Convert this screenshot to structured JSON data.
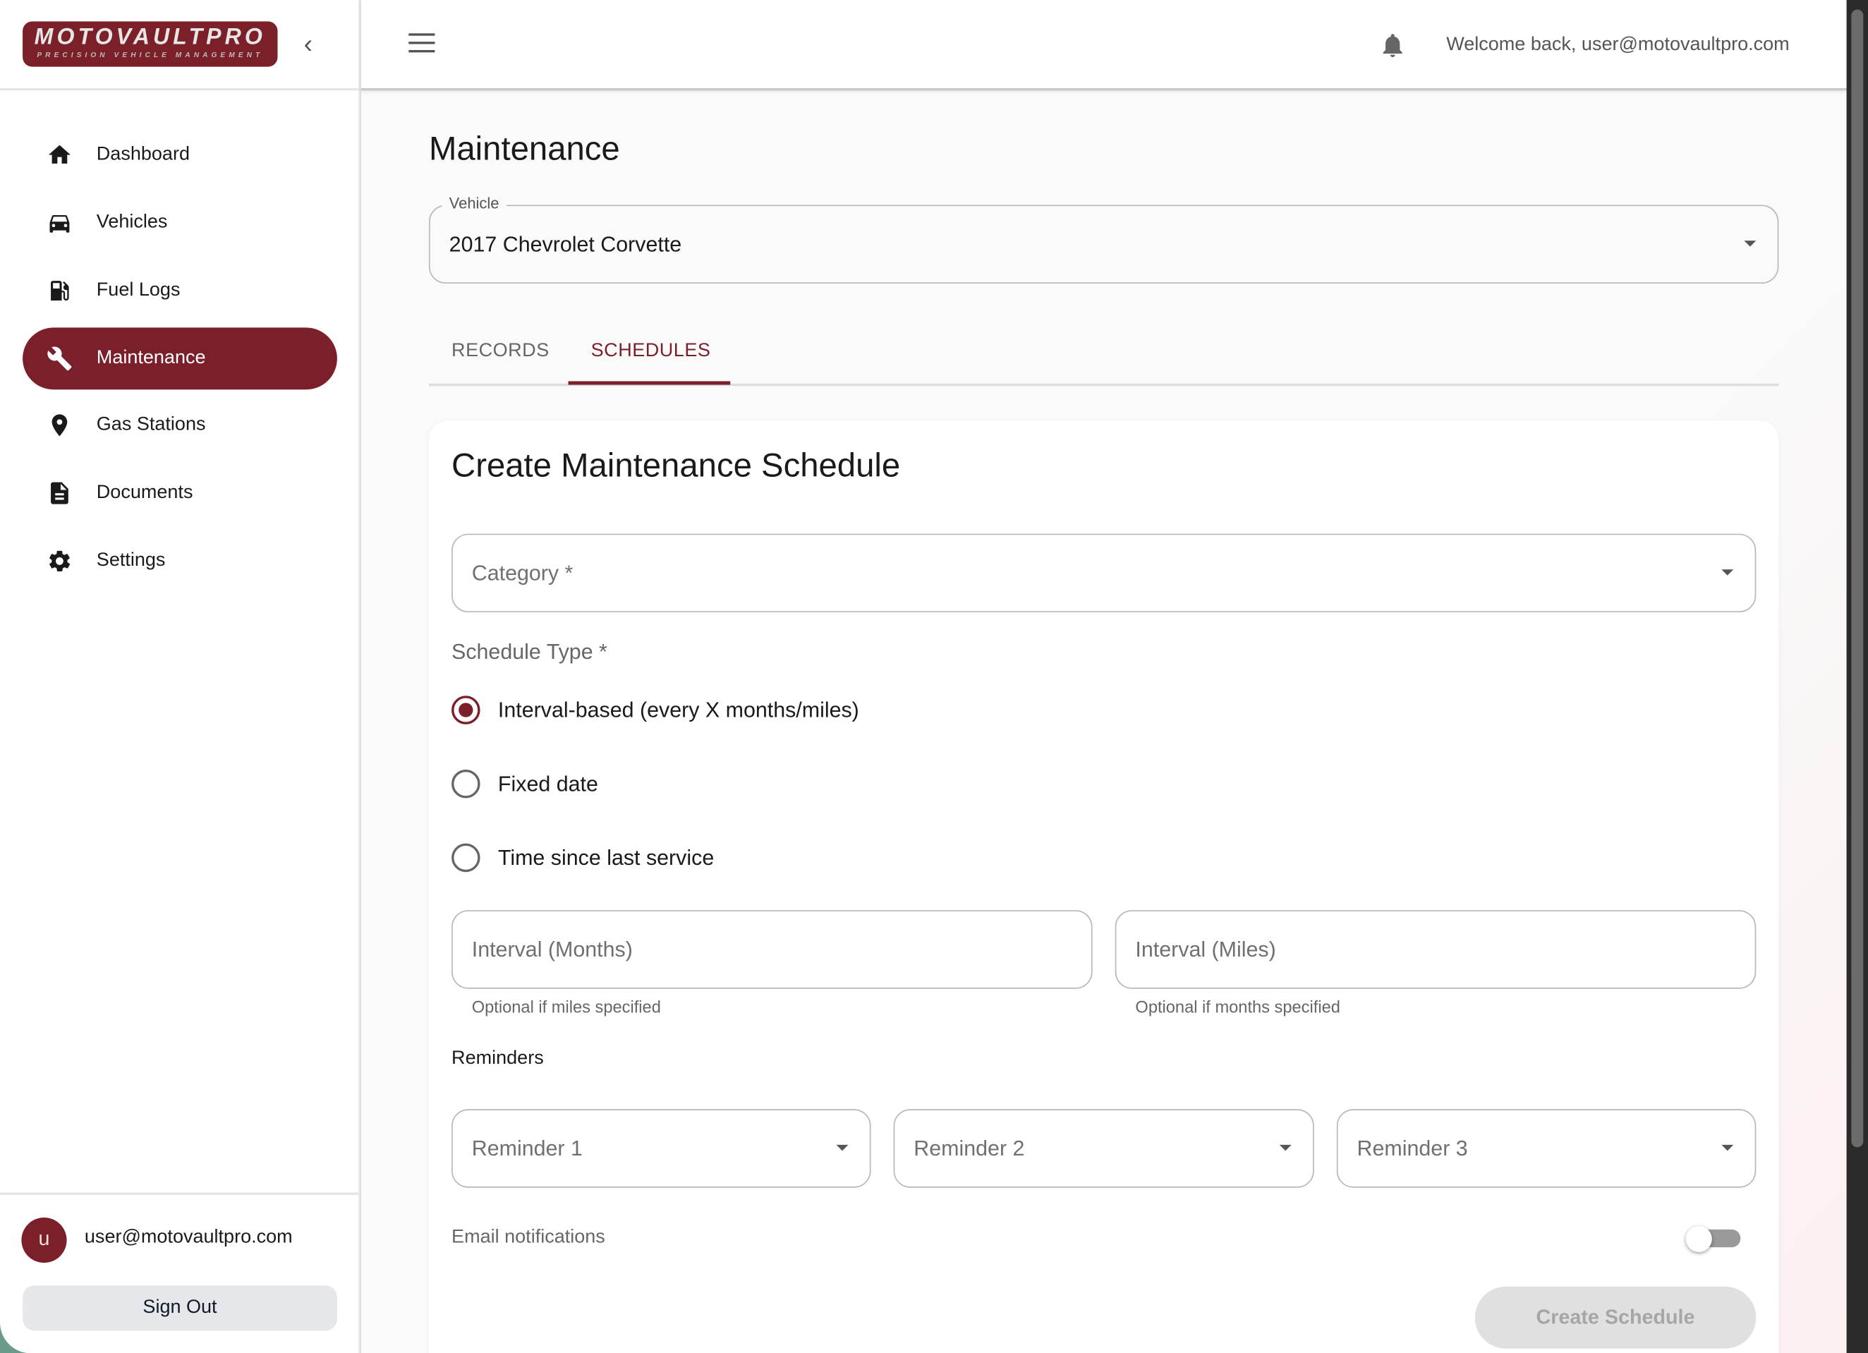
{
  "brand": {
    "name": "MOTOVAULTPRO",
    "tagline": "PRECISION VEHICLE MANAGEMENT",
    "color": "#7b1f2a"
  },
  "sidebar": {
    "items": [
      {
        "label": "Dashboard",
        "icon": "home-icon",
        "active": false
      },
      {
        "label": "Vehicles",
        "icon": "car-icon",
        "active": false
      },
      {
        "label": "Fuel Logs",
        "icon": "fuel-pump-icon",
        "active": false
      },
      {
        "label": "Maintenance",
        "icon": "wrench-icon",
        "active": true
      },
      {
        "label": "Gas Stations",
        "icon": "location-pin-icon",
        "active": false
      },
      {
        "label": "Documents",
        "icon": "document-icon",
        "active": false
      },
      {
        "label": "Settings",
        "icon": "gear-icon",
        "active": false
      }
    ],
    "user": {
      "avatar_letter": "u",
      "email": "user@motovaultpro.com"
    },
    "sign_out": "Sign Out"
  },
  "header": {
    "welcome": "Welcome back, user@motovaultpro.com"
  },
  "page": {
    "title": "Maintenance",
    "vehicle": {
      "label": "Vehicle",
      "value": "2017 Chevrolet Corvette"
    },
    "tabs": [
      {
        "label": "RECORDS",
        "active": false
      },
      {
        "label": "SCHEDULES",
        "active": true
      }
    ]
  },
  "form": {
    "title": "Create Maintenance Schedule",
    "category_label": "Category *",
    "schedule_type_label": "Schedule Type *",
    "schedule_types": [
      {
        "label": "Interval-based (every X months/miles)",
        "selected": true
      },
      {
        "label": "Fixed date",
        "selected": false
      },
      {
        "label": "Time since last service",
        "selected": false
      }
    ],
    "interval_months": {
      "label": "Interval (Months)",
      "helper": "Optional if miles specified"
    },
    "interval_miles": {
      "label": "Interval (Miles)",
      "helper": "Optional if months specified"
    },
    "reminders_label": "Reminders",
    "reminders": [
      "Reminder 1",
      "Reminder 2",
      "Reminder 3"
    ],
    "email_notifications": {
      "label": "Email notifications",
      "enabled": false
    },
    "submit": "Create Schedule"
  }
}
